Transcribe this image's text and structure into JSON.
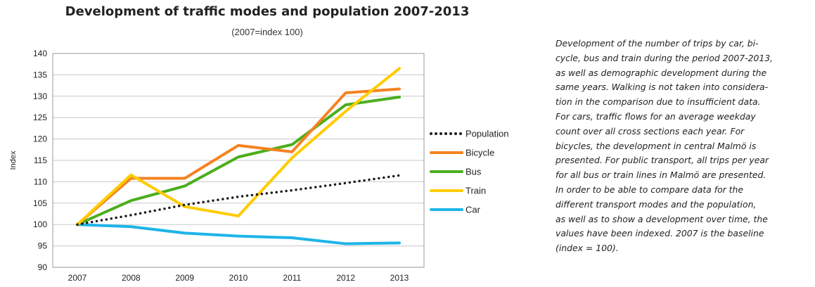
{
  "chart_data": {
    "type": "line",
    "title": "Development of traffic modes and population 2007-2013",
    "subtitle": "(2007=index 100)",
    "ylabel": "Index",
    "xlabel": "",
    "categories": [
      "2007",
      "2008",
      "2009",
      "2010",
      "2011",
      "2012",
      "2013"
    ],
    "ylim": [
      90,
      140
    ],
    "yticks": [
      90,
      95,
      100,
      105,
      110,
      115,
      120,
      125,
      130,
      135,
      140
    ],
    "grid": true,
    "legend_position": "right",
    "series": [
      {
        "name": "Population",
        "color": "#1a1a1a",
        "style": "dotted",
        "values": [
          100,
          102.2,
          104.6,
          106.5,
          108,
          109.7,
          111.5
        ]
      },
      {
        "name": "Bicycle",
        "color": "#f58220",
        "style": "solid",
        "values": [
          100,
          110.8,
          110.8,
          118.5,
          117,
          130.8,
          131.7
        ]
      },
      {
        "name": "Bus",
        "color": "#4cae1d",
        "style": "solid",
        "values": [
          100,
          105.6,
          109,
          115.8,
          118.7,
          128,
          129.8
        ]
      },
      {
        "name": "Train",
        "color": "#ffcc00",
        "style": "solid",
        "values": [
          100,
          111.6,
          104.2,
          102,
          115.6,
          126.5,
          136.5
        ]
      },
      {
        "name": "Car",
        "color": "#1eb4e8",
        "style": "solid",
        "values": [
          100,
          99.5,
          98,
          97.3,
          96.9,
          95.5,
          95.7
        ]
      }
    ]
  },
  "description_lines": [
    "Development of the number of trips by car, bi-",
    "cycle, bus and train during the period 2007-2013,",
    "as well as demographic development during the",
    "same years. Walking is not taken into considera-",
    "tion in the comparison due to insufficient data.",
    "For cars, traffic flows for an average weekday",
    "count over all cross sections each year. For",
    "bicycles, the development in central Malmö is",
    "presented. For public transport, all trips per year",
    "for all bus or train lines in Malmö are presented.",
    "In order to be able to compare data for the",
    "different transport modes and the population,",
    "as well as to show a development over time, the",
    "values have been indexed. 2007 is the baseline",
    "(index = 100)."
  ]
}
